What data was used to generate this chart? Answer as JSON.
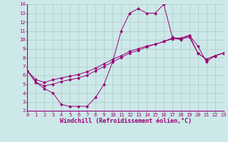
{
  "xlabel": "Windchill (Refroidissement éolien,°C)",
  "xlim": [
    0,
    23
  ],
  "ylim": [
    2,
    14
  ],
  "xticks": [
    0,
    1,
    2,
    3,
    4,
    5,
    6,
    7,
    8,
    9,
    10,
    11,
    12,
    13,
    14,
    15,
    16,
    17,
    18,
    19,
    20,
    21,
    22,
    23
  ],
  "yticks": [
    2,
    3,
    4,
    5,
    6,
    7,
    8,
    9,
    10,
    11,
    12,
    13,
    14
  ],
  "background_color": "#cde8e8",
  "grid_color": "#aacccc",
  "line_color": "#990077",
  "curve1_x": [
    0,
    1,
    2,
    3,
    4,
    5,
    6,
    7,
    8,
    9,
    10,
    11,
    12,
    13,
    14,
    15,
    16,
    17,
    18,
    19,
    20,
    21,
    22,
    23
  ],
  "curve1_y": [
    6.5,
    5.2,
    4.5,
    4.0,
    2.7,
    2.5,
    2.5,
    2.5,
    3.5,
    5.0,
    7.5,
    11.0,
    13.0,
    13.5,
    13.0,
    13.0,
    14.0,
    10.3,
    10.0,
    10.5,
    9.3,
    7.5,
    8.2,
    8.5
  ],
  "curve2_x": [
    0,
    1,
    2,
    3,
    4,
    5,
    6,
    7,
    8,
    9,
    10,
    11,
    12,
    13,
    14,
    15,
    16,
    17,
    18,
    19,
    20,
    21,
    22,
    23
  ],
  "curve2_y": [
    6.5,
    5.5,
    5.2,
    5.5,
    5.7,
    5.9,
    6.1,
    6.4,
    6.8,
    7.3,
    7.8,
    8.2,
    8.7,
    9.0,
    9.3,
    9.5,
    9.8,
    10.2,
    10.2,
    10.5,
    8.5,
    7.8,
    8.2,
    8.5
  ],
  "curve3_x": [
    0,
    1,
    2,
    3,
    4,
    5,
    6,
    7,
    8,
    9,
    10,
    11,
    12,
    13,
    14,
    15,
    16,
    17,
    18,
    19,
    20,
    21,
    22,
    23
  ],
  "curve3_y": [
    6.5,
    5.2,
    4.8,
    5.0,
    5.3,
    5.5,
    5.7,
    6.0,
    6.5,
    7.0,
    7.5,
    8.0,
    8.5,
    8.8,
    9.2,
    9.5,
    9.8,
    10.1,
    10.1,
    10.3,
    8.5,
    7.8,
    8.2,
    8.5
  ],
  "tick_fontsize": 5.0,
  "xlabel_fontsize": 6.0
}
